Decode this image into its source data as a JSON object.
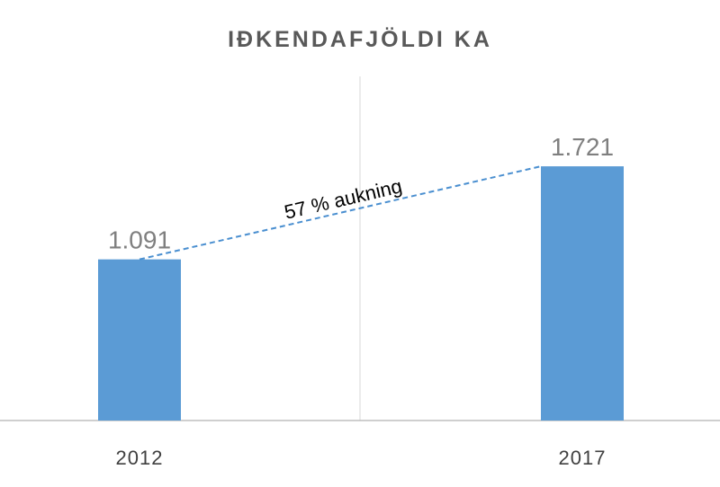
{
  "chart_data": {
    "type": "bar",
    "title": "IÐKENDAFJÖLDI KA",
    "categories": [
      "2012",
      "2017"
    ],
    "values": [
      1091,
      1721
    ],
    "value_labels": [
      "1.091",
      "1.721"
    ],
    "ylim": [
      0,
      2000
    ],
    "grid": false,
    "annotation": "57 % aukning",
    "colors": {
      "bar": "#5b9bd5",
      "trend_line": "#4a8fd0"
    }
  }
}
